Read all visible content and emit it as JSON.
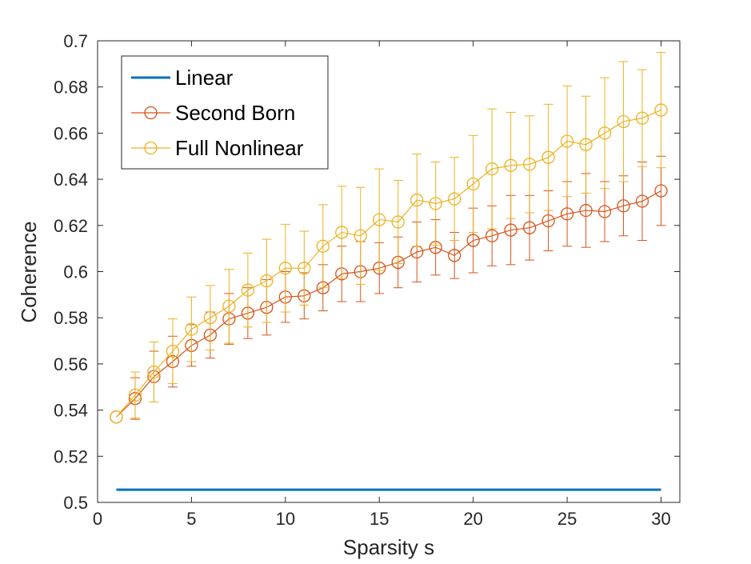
{
  "chart_data": {
    "type": "line",
    "xlabel": "Sparsity s",
    "ylabel": "Coherence",
    "xlim": [
      0,
      31
    ],
    "ylim": [
      0.5,
      0.7
    ],
    "xticks": [
      0,
      5,
      10,
      15,
      20,
      25,
      30
    ],
    "xtick_labels": [
      "0",
      "5",
      "10",
      "15",
      "20",
      "25",
      "30"
    ],
    "yticks": [
      0.5,
      0.52,
      0.54,
      0.56,
      0.58,
      0.6,
      0.62,
      0.64,
      0.66,
      0.68,
      0.7
    ],
    "ytick_labels": [
      "0.5",
      "0.52",
      "0.54",
      "0.56",
      "0.58",
      "0.6",
      "0.62",
      "0.64",
      "0.66",
      "0.68",
      "0.7"
    ],
    "grid": false,
    "legend_position": "top-left",
    "series": [
      {
        "name": "Linear",
        "color": "#0072BD",
        "marker": "none",
        "x": [
          1,
          30
        ],
        "values": [
          0.5055,
          0.5055
        ]
      },
      {
        "name": "Second Born",
        "color": "#D95319",
        "marker": "circle",
        "x": [
          1,
          2,
          3,
          4,
          5,
          6,
          7,
          8,
          9,
          10,
          11,
          12,
          13,
          14,
          15,
          16,
          17,
          18,
          19,
          20,
          21,
          22,
          23,
          24,
          25,
          26,
          27,
          28,
          29,
          30
        ],
        "values": [
          0.537,
          0.545,
          0.5545,
          0.561,
          0.568,
          0.5725,
          0.5795,
          0.582,
          0.5845,
          0.589,
          0.5895,
          0.593,
          0.599,
          0.6,
          0.6015,
          0.604,
          0.6085,
          0.6105,
          0.607,
          0.6135,
          0.6155,
          0.618,
          0.619,
          0.622,
          0.625,
          0.6265,
          0.626,
          0.6285,
          0.6305,
          0.635
        ],
        "errors": [
          0,
          0.009,
          0.011,
          0.011,
          0.009,
          0.01,
          0.011,
          0.011,
          0.012,
          0.011,
          0.01,
          0.01,
          0.012,
          0.013,
          0.011,
          0.011,
          0.013,
          0.012,
          0.01,
          0.014,
          0.013,
          0.015,
          0.014,
          0.013,
          0.014,
          0.016,
          0.013,
          0.013,
          0.017,
          0.015
        ]
      },
      {
        "name": "Full Nonlinear",
        "color": "#EDB120",
        "marker": "circle",
        "x": [
          1,
          2,
          3,
          4,
          5,
          6,
          7,
          8,
          9,
          10,
          11,
          12,
          13,
          14,
          15,
          16,
          17,
          18,
          19,
          20,
          21,
          22,
          23,
          24,
          25,
          26,
          27,
          28,
          29,
          30
        ],
        "values": [
          0.537,
          0.5465,
          0.5565,
          0.5655,
          0.575,
          0.58,
          0.585,
          0.592,
          0.596,
          0.6015,
          0.6015,
          0.611,
          0.617,
          0.6155,
          0.6225,
          0.6215,
          0.631,
          0.6295,
          0.6315,
          0.638,
          0.6445,
          0.646,
          0.6465,
          0.6495,
          0.6565,
          0.655,
          0.66,
          0.665,
          0.6665,
          0.67
        ],
        "errors": [
          0,
          0.01,
          0.013,
          0.014,
          0.014,
          0.014,
          0.016,
          0.016,
          0.018,
          0.019,
          0.016,
          0.018,
          0.02,
          0.021,
          0.022,
          0.018,
          0.02,
          0.018,
          0.018,
          0.021,
          0.026,
          0.023,
          0.021,
          0.023,
          0.024,
          0.021,
          0.024,
          0.026,
          0.021,
          0.025
        ]
      }
    ]
  }
}
